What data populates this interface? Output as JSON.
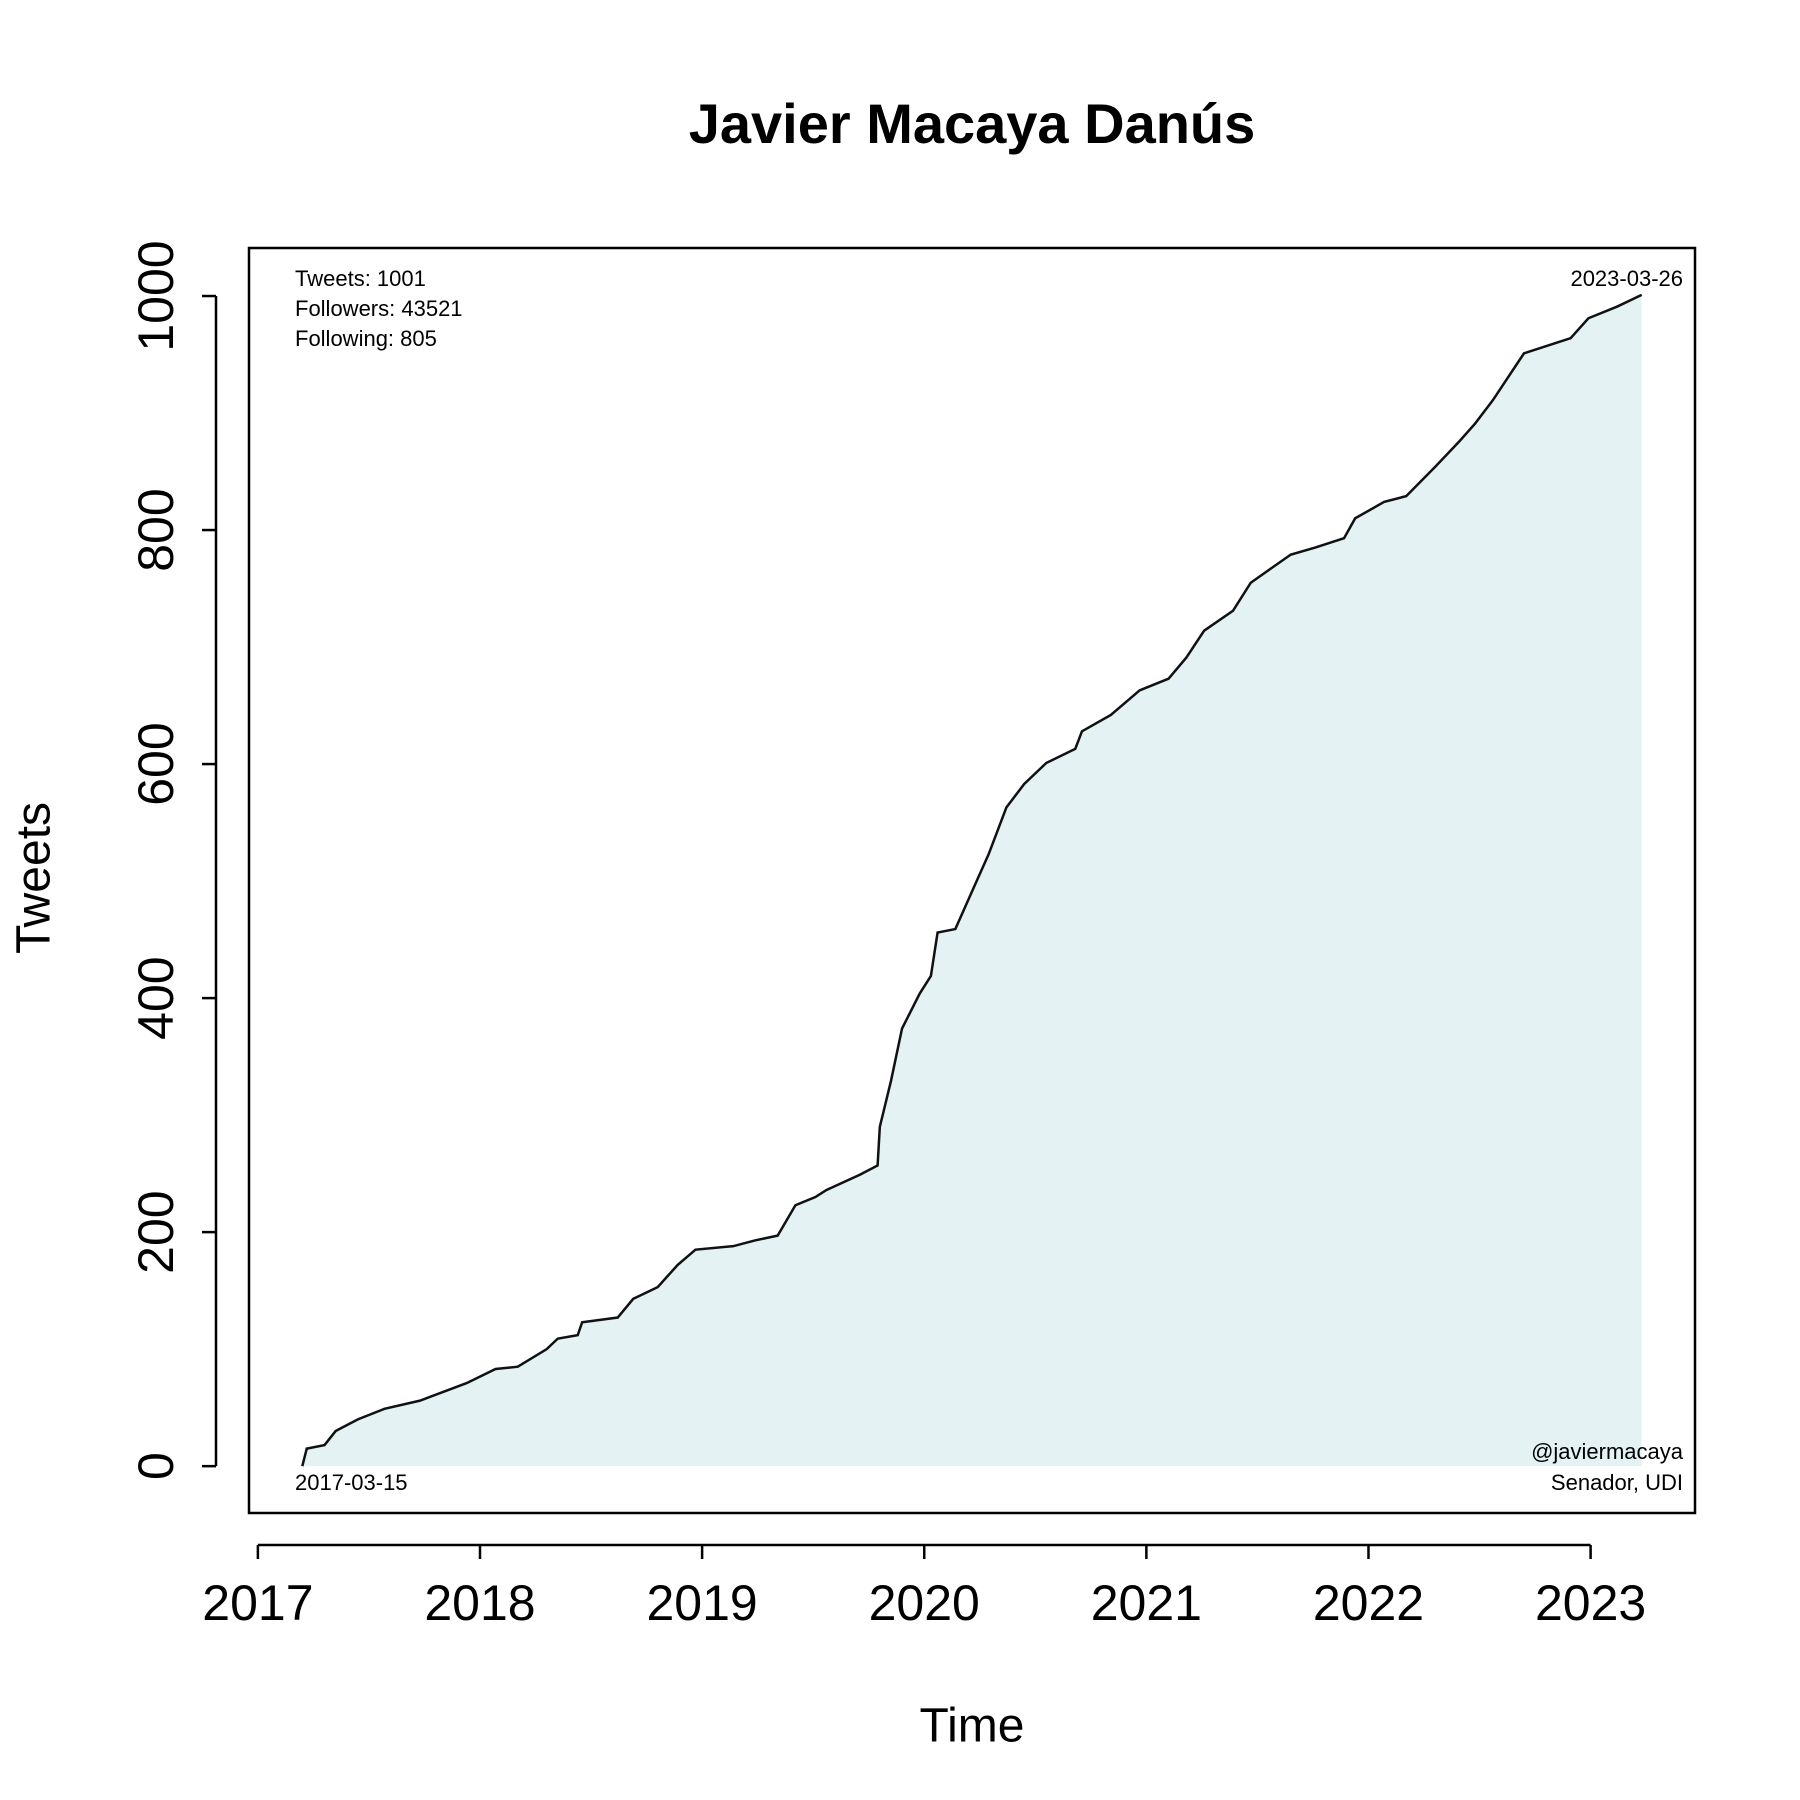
{
  "chart_data": {
    "type": "line",
    "title": "Javier Macaya Danús",
    "x_label": "Time",
    "y_label": "Tweets",
    "annotations": [
      "Tweets: 1001",
      "Followers: 43521",
      "Following: 805",
      "2017-03-15",
      "2023-03-26",
      "@javiermacaya",
      "Senador, UDI"
    ],
    "x": [
      2017.2,
      2017.22,
      2017.3,
      2017.35,
      2017.45,
      2017.57,
      2017.73,
      2017.94,
      2018.07,
      2018.17,
      2018.3,
      2018.35,
      2018.44,
      2018.46,
      2018.62,
      2018.69,
      2018.8,
      2018.89,
      2018.97,
      2019.14,
      2019.24,
      2019.34,
      2019.42,
      2019.51,
      2019.56,
      2019.71,
      2019.79,
      2019.8,
      2019.85,
      2019.9,
      2019.98,
      2020.03,
      2020.06,
      2020.14,
      2020.21,
      2020.29,
      2020.37,
      2020.45,
      2020.55,
      2020.68,
      2020.71,
      2020.84,
      2020.97,
      2021.1,
      2021.18,
      2021.26,
      2021.39,
      2021.47,
      2021.56,
      2021.65,
      2021.76,
      2021.89,
      2021.94,
      2022.07,
      2022.17,
      2022.3,
      2022.41,
      2022.48,
      2022.56,
      2022.7,
      2022.91,
      2022.99,
      2023.12,
      2023.23
    ],
    "series": [
      {
        "name": "Tweets",
        "color": "#111111",
        "fill": "#e4f2f4",
        "values": [
          0,
          15,
          18,
          30,
          40,
          49,
          56,
          71,
          83,
          85,
          100,
          109,
          112,
          123,
          127,
          143,
          153,
          172,
          185,
          188,
          193,
          197,
          223,
          230,
          236,
          249,
          257,
          290,
          329,
          374,
          404,
          419,
          456,
          459,
          489,
          523,
          563,
          583,
          601,
          613,
          628,
          642,
          663,
          673,
          691,
          714,
          731,
          755,
          767,
          779,
          785,
          793,
          810,
          824,
          829,
          854,
          876,
          891,
          911,
          951,
          964,
          981,
          991,
          1001
        ]
      }
    ],
    "xlim": [
      2016.96,
      2023.47
    ],
    "xticks": [
      2017,
      2018,
      2019,
      2020,
      2021,
      2022,
      2023
    ],
    "ylim": [
      -40.04,
      1041.04
    ],
    "yticks": [
      0,
      200,
      400,
      600,
      800,
      1000
    ]
  }
}
